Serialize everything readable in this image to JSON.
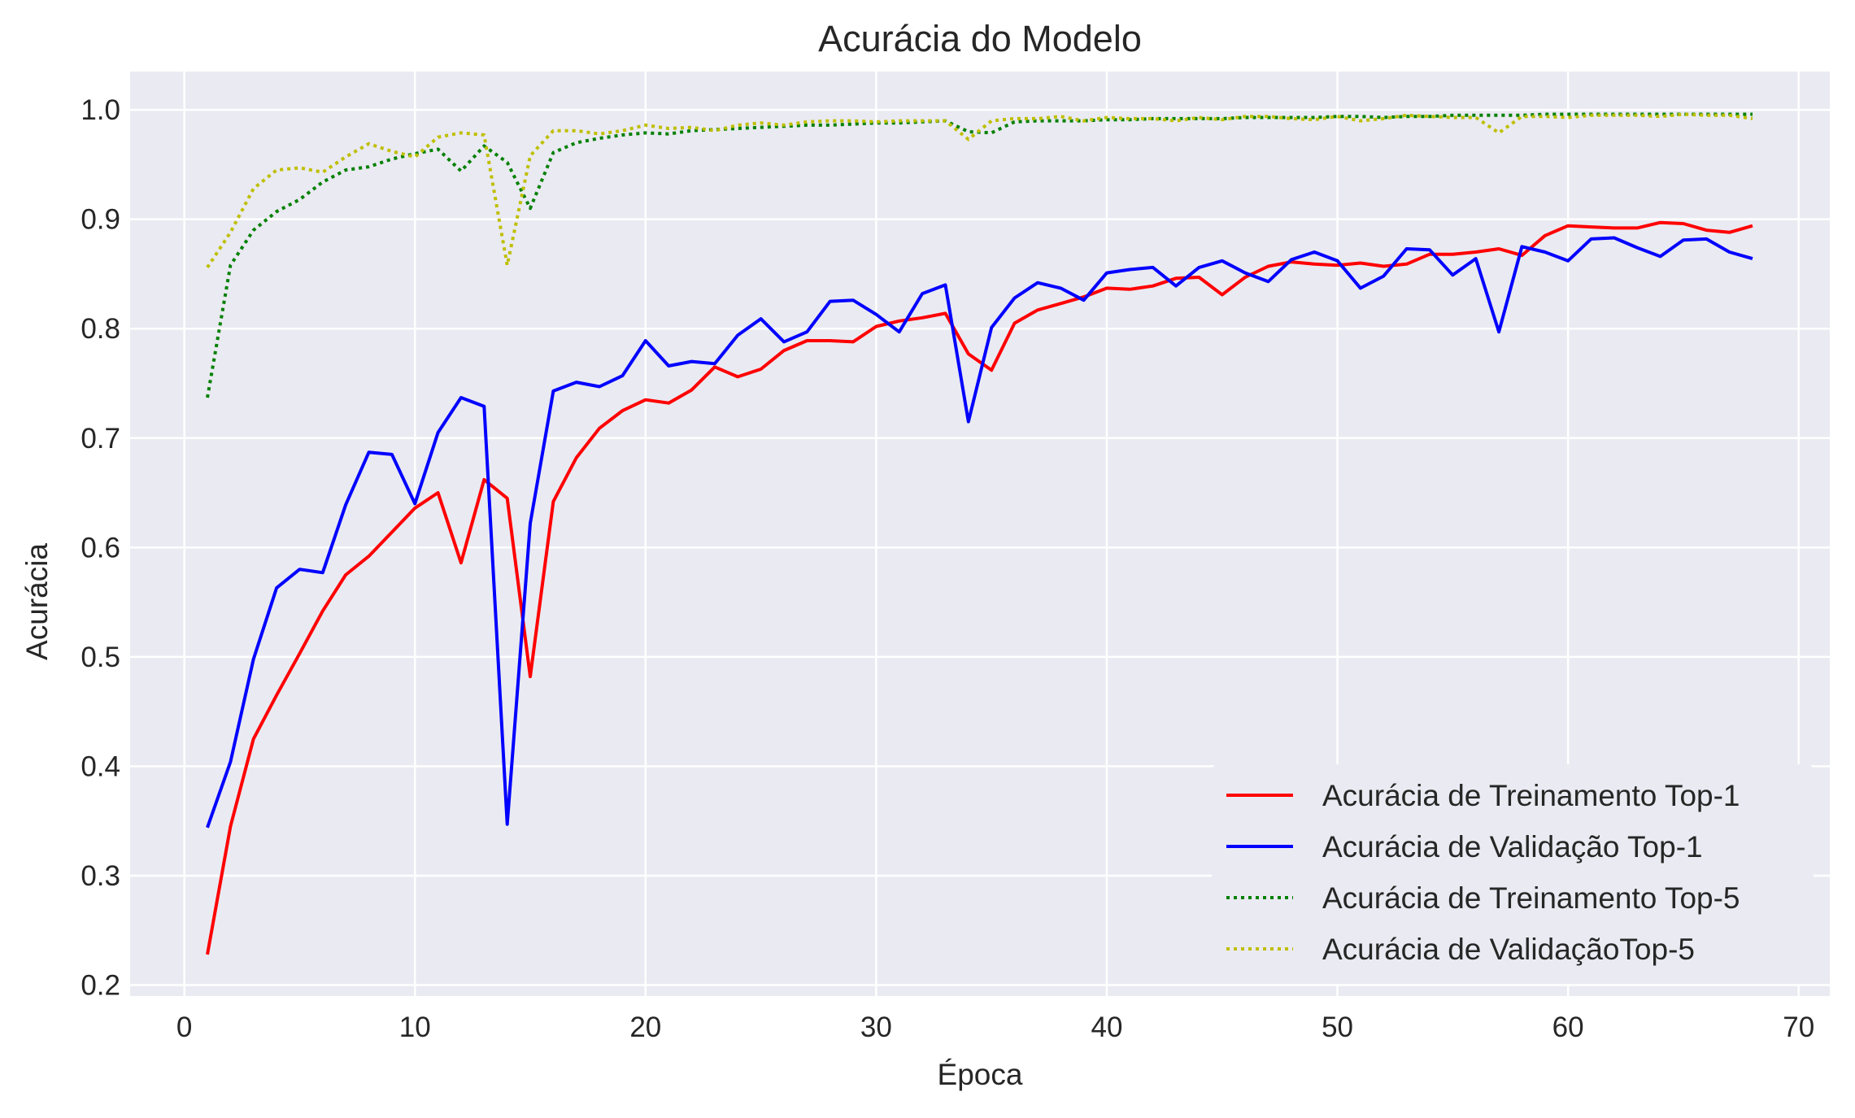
{
  "chart_data": {
    "type": "line",
    "title": "Acurácia do Modelo",
    "xlabel": "Época",
    "ylabel": "Acurácia",
    "xlim": [
      -2.35,
      71.35
    ],
    "ylim": [
      0.19,
      1.035
    ],
    "xticks": [
      0,
      10,
      20,
      30,
      40,
      50,
      60,
      70
    ],
    "xtick_labels": [
      "0",
      "10",
      "20",
      "30",
      "40",
      "50",
      "60",
      "70"
    ],
    "yticks": [
      0.2,
      0.3,
      0.4,
      0.5,
      0.6,
      0.7,
      0.8,
      0.9,
      1.0
    ],
    "ytick_labels": [
      "0.2",
      "0.3",
      "0.4",
      "0.5",
      "0.6",
      "0.7",
      "0.8",
      "0.9",
      "1.0"
    ],
    "grid": true,
    "background": "#eaeaf2",
    "legend_position": "bottom-right",
    "x": [
      1,
      2,
      3,
      4,
      5,
      6,
      7,
      8,
      9,
      10,
      11,
      12,
      13,
      14,
      15,
      16,
      17,
      18,
      19,
      20,
      21,
      22,
      23,
      24,
      25,
      26,
      27,
      28,
      29,
      30,
      31,
      32,
      33,
      34,
      35,
      36,
      37,
      38,
      39,
      40,
      41,
      42,
      43,
      44,
      45,
      46,
      47,
      48,
      49,
      50,
      51,
      52,
      53,
      54,
      55,
      56,
      57,
      58,
      59,
      60,
      61,
      62,
      63,
      64,
      65,
      66,
      67,
      68
    ],
    "series": [
      {
        "name": "Acurácia de Treinamento Top-1",
        "color": "#ff0000",
        "style": "solid",
        "values": [
          0.228,
          0.345,
          0.425,
          0.465,
          0.503,
          0.542,
          0.575,
          0.592,
          0.614,
          0.636,
          0.65,
          0.586,
          0.662,
          0.645,
          0.482,
          0.642,
          0.682,
          0.709,
          0.725,
          0.735,
          0.732,
          0.744,
          0.765,
          0.756,
          0.763,
          0.78,
          0.789,
          0.789,
          0.788,
          0.802,
          0.807,
          0.81,
          0.814,
          0.777,
          0.762,
          0.805,
          0.817,
          0.823,
          0.829,
          0.837,
          0.836,
          0.839,
          0.846,
          0.847,
          0.831,
          0.847,
          0.857,
          0.861,
          0.859,
          0.858,
          0.86,
          0.857,
          0.859,
          0.868,
          0.868,
          0.87,
          0.873,
          0.867,
          0.885,
          0.894,
          0.893,
          0.892,
          0.892,
          0.897,
          0.896,
          0.89,
          0.888,
          0.894
        ]
      },
      {
        "name": "Acurácia de Validação Top-1",
        "color": "#0000ff",
        "style": "solid",
        "values": [
          0.344,
          0.404,
          0.498,
          0.563,
          0.58,
          0.577,
          0.639,
          0.687,
          0.685,
          0.64,
          0.705,
          0.737,
          0.729,
          0.347,
          0.622,
          0.743,
          0.751,
          0.747,
          0.757,
          0.789,
          0.766,
          0.77,
          0.768,
          0.794,
          0.809,
          0.788,
          0.797,
          0.825,
          0.826,
          0.813,
          0.797,
          0.832,
          0.84,
          0.715,
          0.801,
          0.828,
          0.842,
          0.837,
          0.826,
          0.851,
          0.854,
          0.856,
          0.839,
          0.856,
          0.862,
          0.851,
          0.843,
          0.863,
          0.87,
          0.862,
          0.837,
          0.848,
          0.873,
          0.872,
          0.849,
          0.864,
          0.797,
          0.875,
          0.87,
          0.862,
          0.882,
          0.883,
          0.874,
          0.866,
          0.881,
          0.882,
          0.87,
          0.864
        ]
      },
      {
        "name": "Acurácia de Treinamento Top-5",
        "color": "#008000",
        "style": "dotted",
        "values": [
          0.737,
          0.858,
          0.89,
          0.907,
          0.918,
          0.934,
          0.945,
          0.948,
          0.955,
          0.96,
          0.964,
          0.944,
          0.967,
          0.952,
          0.91,
          0.961,
          0.97,
          0.974,
          0.977,
          0.979,
          0.978,
          0.981,
          0.982,
          0.983,
          0.984,
          0.985,
          0.986,
          0.986,
          0.987,
          0.988,
          0.988,
          0.989,
          0.99,
          0.98,
          0.979,
          0.989,
          0.99,
          0.99,
          0.99,
          0.991,
          0.991,
          0.992,
          0.992,
          0.992,
          0.992,
          0.993,
          0.993,
          0.993,
          0.993,
          0.994,
          0.994,
          0.993,
          0.994,
          0.994,
          0.995,
          0.995,
          0.995,
          0.995,
          0.996,
          0.996,
          0.996,
          0.996,
          0.996,
          0.996,
          0.996,
          0.996,
          0.996,
          0.996
        ]
      },
      {
        "name": "Acurácia de ValidaçãoTop-5",
        "color": "#bfbf00",
        "style": "dotted",
        "values": [
          0.856,
          0.888,
          0.928,
          0.945,
          0.947,
          0.943,
          0.957,
          0.969,
          0.962,
          0.957,
          0.975,
          0.979,
          0.977,
          0.858,
          0.958,
          0.981,
          0.981,
          0.978,
          0.981,
          0.986,
          0.983,
          0.984,
          0.981,
          0.986,
          0.988,
          0.986,
          0.989,
          0.99,
          0.99,
          0.989,
          0.99,
          0.99,
          0.99,
          0.973,
          0.99,
          0.992,
          0.992,
          0.994,
          0.99,
          0.993,
          0.992,
          0.992,
          0.99,
          0.993,
          0.991,
          0.994,
          0.994,
          0.992,
          0.991,
          0.994,
          0.99,
          0.992,
          0.995,
          0.994,
          0.993,
          0.993,
          0.979,
          0.994,
          0.994,
          0.993,
          0.995,
          0.995,
          0.995,
          0.994,
          0.996,
          0.995,
          0.995,
          0.992
        ]
      }
    ]
  }
}
